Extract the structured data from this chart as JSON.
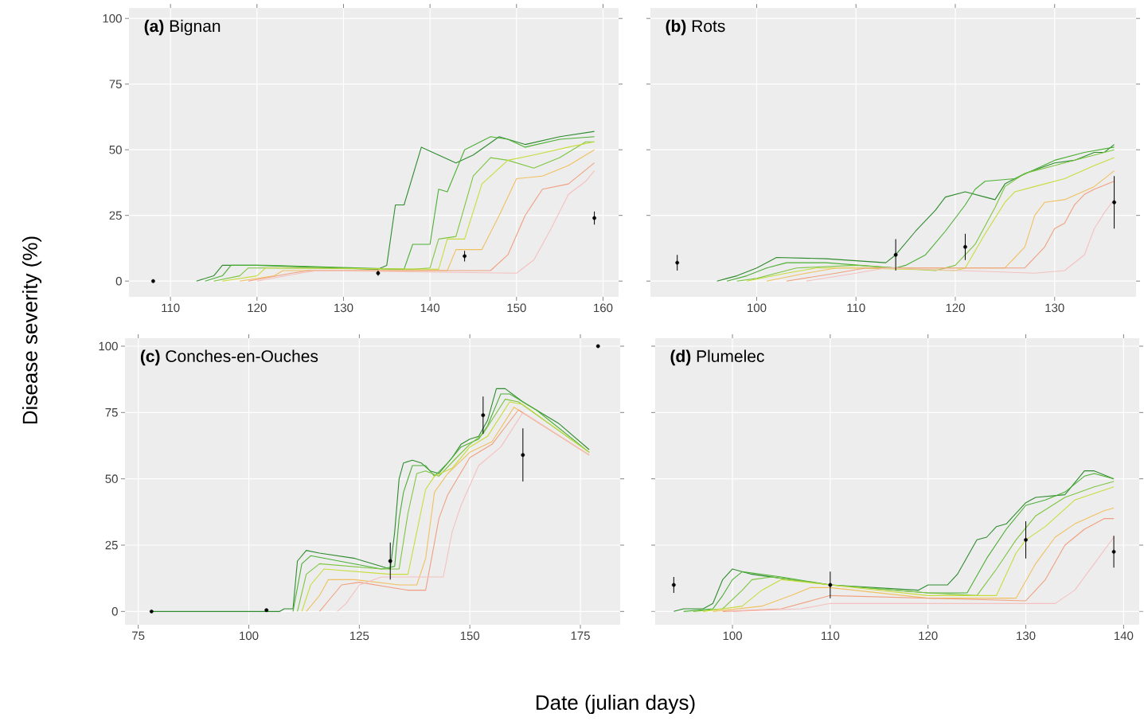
{
  "chart_data": [
    {
      "type": "line",
      "title": "**(a)** Bignan",
      "ylabel": "Disease severity (%)",
      "xlim": [
        105.2,
        161.8
      ],
      "ylim": [
        -6,
        104
      ],
      "xticks": [
        110,
        120,
        130,
        140,
        150,
        160
      ],
      "yticks": [
        0,
        25,
        50,
        75,
        100
      ],
      "grid": true,
      "series": [
        {
          "color": "#2e8b2e",
          "x": [
            113,
            115,
            116,
            120,
            134,
            135,
            136,
            137,
            139,
            143,
            145,
            148,
            151,
            155,
            159
          ],
          "values": [
            0,
            2,
            6,
            6,
            4.5,
            6,
            29,
            29,
            51,
            45,
            48,
            55,
            52,
            55,
            57
          ]
        },
        {
          "color": "#4caf35",
          "x": [
            114,
            116,
            117,
            121,
            137,
            138,
            140,
            141,
            142,
            144,
            147,
            149,
            151,
            155,
            159
          ],
          "values": [
            0,
            2,
            6,
            6,
            4.5,
            14,
            14,
            35,
            34,
            50,
            55,
            54,
            51,
            54,
            55
          ]
        },
        {
          "color": "#7dc540",
          "x": [
            115,
            118,
            119,
            122,
            138,
            140,
            141,
            143,
            145,
            147,
            149,
            152,
            155,
            158,
            159
          ],
          "values": [
            0,
            2,
            5,
            5,
            4.5,
            5,
            16,
            17,
            40,
            47,
            46,
            43,
            47,
            53,
            53
          ]
        },
        {
          "color": "#c8dc3c",
          "x": [
            116,
            120,
            121,
            124,
            141,
            142,
            144,
            146,
            149,
            152,
            156,
            159
          ],
          "values": [
            0,
            2,
            5,
            5,
            4.5,
            16,
            16,
            37,
            46,
            48,
            51,
            53
          ]
        },
        {
          "color": "#f0c060",
          "x": [
            118,
            122,
            123,
            125,
            142,
            143,
            146,
            148,
            150,
            153,
            156,
            159
          ],
          "values": [
            0,
            2,
            4,
            4,
            4,
            12,
            12,
            25,
            39,
            40,
            44,
            50
          ]
        },
        {
          "color": "#f0a080",
          "x": [
            119,
            124,
            126,
            147,
            149,
            151,
            153,
            156,
            159
          ],
          "values": [
            0,
            3,
            4,
            4,
            10,
            25,
            35,
            37,
            45
          ]
        },
        {
          "color": "#f5c0c0",
          "x": [
            120,
            125,
            127,
            150,
            152,
            154,
            156,
            158,
            159
          ],
          "values": [
            0,
            3,
            4,
            3,
            8,
            20,
            33,
            38,
            42
          ]
        },
        {
          "type": "scatter",
          "color": "#000000",
          "x": [
            108,
            134,
            144,
            159
          ],
          "values": [
            0,
            3,
            9.5,
            24
          ],
          "errors": [
            null,
            1,
            2,
            2.5
          ]
        }
      ]
    },
    {
      "type": "line",
      "title": "**(b)** Rots",
      "xlim": [
        89.3,
        138.2
      ],
      "ylim": [
        -6,
        104
      ],
      "xticks": [
        100,
        110,
        120,
        130
      ],
      "yticks": [
        0,
        25,
        50,
        75,
        100
      ],
      "grid": true,
      "tick_labels": "x",
      "series": [
        {
          "color": "#2e8b2e",
          "x": [
            96,
            97,
            98,
            100,
            102,
            107,
            113,
            114,
            116,
            118,
            119,
            121,
            123,
            124,
            125,
            127,
            130,
            132,
            134,
            135,
            136
          ],
          "values": [
            0,
            1,
            2,
            5,
            9,
            8.5,
            7,
            10,
            19,
            27,
            32,
            34,
            32,
            31,
            37,
            41,
            45,
            46,
            49,
            49,
            52
          ]
        },
        {
          "color": "#4caf35",
          "x": [
            97,
            99,
            101,
            103,
            107,
            114,
            115,
            117,
            119,
            121,
            122,
            123,
            126,
            130,
            133,
            136
          ],
          "values": [
            0,
            2,
            5,
            7,
            7,
            5,
            6,
            10,
            19,
            29,
            35,
            38,
            39,
            46,
            49,
            51
          ]
        },
        {
          "color": "#7dc540",
          "x": [
            98,
            100,
            102,
            104,
            110,
            118,
            120,
            122,
            124,
            125,
            127,
            130,
            133,
            136
          ],
          "values": [
            0,
            1,
            3,
            5,
            6,
            4,
            6,
            14,
            28,
            36,
            41,
            44,
            47,
            50
          ]
        },
        {
          "color": "#c8dc3c",
          "x": [
            99,
            103,
            106,
            110,
            120,
            121,
            123,
            125,
            126,
            128,
            131,
            134,
            136
          ],
          "values": [
            0,
            3,
            5,
            5,
            4,
            5,
            18,
            30,
            34,
            36,
            39,
            44,
            47
          ]
        },
        {
          "color": "#f0c060",
          "x": [
            101,
            105,
            108,
            120,
            125,
            127,
            128,
            129,
            131,
            134,
            136
          ],
          "values": [
            0,
            3,
            5,
            5,
            5,
            13,
            25,
            30,
            31,
            36,
            42
          ]
        },
        {
          "color": "#f0a080",
          "x": [
            103,
            108,
            111,
            127,
            129,
            130,
            131,
            132,
            133,
            134,
            136
          ],
          "values": [
            0,
            3,
            5,
            5,
            13,
            20,
            22,
            29,
            33,
            35,
            38
          ]
        },
        {
          "color": "#f5c0c0",
          "x": [
            105,
            110,
            113,
            128,
            131,
            133,
            134,
            135,
            136
          ],
          "values": [
            0,
            3,
            5,
            3,
            4,
            10,
            20,
            26,
            31
          ]
        },
        {
          "type": "scatter",
          "color": "#000000",
          "x": [
            92,
            114,
            121,
            136
          ],
          "values": [
            7,
            10,
            13,
            30
          ],
          "errors": [
            3,
            6,
            5,
            10
          ]
        }
      ]
    },
    {
      "type": "line",
      "title": "**(c)** Conches-en-Ouches",
      "xlabel": "Date (julian days)",
      "xlim": [
        72,
        184
      ],
      "ylim": [
        -5,
        103
      ],
      "xticks": [
        75,
        100,
        125,
        150,
        175
      ],
      "yticks": [
        0,
        25,
        50,
        75,
        100
      ],
      "grid": true,
      "series": [
        {
          "color": "#2e8b2e",
          "x": [
            78,
            107,
            108,
            110,
            111,
            113,
            116,
            124,
            130,
            132,
            133,
            134,
            135,
            137,
            139,
            141,
            143,
            146,
            148,
            150,
            152,
            154,
            156,
            158,
            162,
            170,
            177
          ],
          "values": [
            0,
            0,
            1,
            1,
            19,
            23,
            22,
            20,
            17,
            16,
            30,
            50,
            56,
            57,
            56,
            53,
            52,
            58,
            63,
            65,
            66,
            72,
            84,
            84,
            79,
            71,
            61
          ]
        },
        {
          "color": "#4caf35",
          "x": [
            110,
            112,
            114,
            130,
            133,
            134,
            135,
            137,
            140,
            142,
            145,
            148,
            152,
            154,
            157,
            159,
            165,
            177
          ],
          "values": [
            0,
            18,
            21,
            16,
            17,
            35,
            45,
            55,
            55,
            51,
            56,
            62,
            65,
            70,
            82,
            82,
            76,
            60
          ]
        },
        {
          "color": "#7dc540",
          "x": [
            111,
            113,
            116,
            130,
            134,
            136,
            138,
            140,
            143,
            147,
            150,
            153,
            158,
            161,
            177
          ],
          "values": [
            0,
            14,
            18,
            16,
            16,
            37,
            52,
            53,
            51,
            58,
            63,
            67,
            80,
            79,
            60
          ]
        },
        {
          "color": "#c8dc3c",
          "x": [
            112,
            114,
            117,
            132,
            136,
            138,
            140,
            142,
            146,
            150,
            154,
            159,
            162,
            177
          ],
          "values": [
            0,
            10,
            16,
            14,
            14,
            30,
            46,
            51,
            54,
            62,
            66,
            79,
            78,
            60
          ]
        },
        {
          "color": "#f0c060",
          "x": [
            113,
            116,
            118,
            124,
            134,
            138,
            140,
            142,
            145,
            150,
            155,
            160,
            177
          ],
          "values": [
            0,
            6,
            12,
            12,
            10,
            10,
            20,
            45,
            52,
            60,
            64,
            77,
            59
          ]
        },
        {
          "color": "#f0a080",
          "x": [
            116,
            118,
            121,
            125,
            136,
            140,
            143,
            145,
            150,
            155,
            161,
            177
          ],
          "values": [
            0,
            4,
            10,
            11,
            8,
            8,
            35,
            44,
            58,
            63,
            76,
            59
          ]
        },
        {
          "color": "#f5c0c0",
          "x": [
            120,
            122,
            125,
            130,
            138,
            144,
            146,
            148,
            152,
            157,
            162,
            177
          ],
          "values": [
            0,
            3,
            10,
            13,
            13,
            13,
            30,
            40,
            55,
            62,
            75,
            59
          ]
        },
        {
          "type": "scatter",
          "color": "#000000",
          "x": [
            78,
            104,
            132,
            153,
            162,
            179
          ],
          "values": [
            0,
            0.5,
            19,
            74,
            59,
            100
          ],
          "errors": [
            null,
            null,
            7,
            7,
            10,
            null
          ]
        }
      ]
    },
    {
      "type": "line",
      "title": "**(d)** Plumelec",
      "xlim": [
        92.1,
        141.6
      ],
      "ylim": [
        -5,
        103
      ],
      "xticks": [
        100,
        110,
        120,
        130,
        140
      ],
      "yticks": [
        0,
        25,
        50,
        75,
        100
      ],
      "grid": true,
      "tick_labels": "x",
      "series": [
        {
          "color": "#2e8b2e",
          "x": [
            94,
            95,
            97,
            98,
            99,
            100,
            102,
            110,
            119,
            120,
            122,
            123,
            125,
            126,
            127,
            128,
            130,
            131,
            134,
            136,
            137,
            139
          ],
          "values": [
            0,
            1,
            1,
            3,
            12,
            16,
            14,
            10,
            8,
            10,
            10,
            14,
            27,
            28,
            32,
            33,
            41,
            43,
            44,
            53,
            53,
            50
          ]
        },
        {
          "color": "#4caf35",
          "x": [
            95,
            98,
            99,
            100,
            101,
            105,
            110,
            120,
            124,
            126,
            128,
            130,
            132,
            134,
            136,
            137,
            139
          ],
          "values": [
            0,
            1,
            6,
            12,
            15,
            13,
            10,
            7,
            7,
            20,
            31,
            40,
            42,
            45,
            51,
            52,
            50
          ]
        },
        {
          "color": "#7dc540",
          "x": [
            96,
            99,
            101,
            102,
            104,
            110,
            120,
            125,
            127,
            129,
            131,
            134,
            137,
            139
          ],
          "values": [
            0,
            1,
            8,
            12,
            13,
            10,
            7,
            6,
            16,
            27,
            36,
            43,
            47,
            49
          ]
        },
        {
          "color": "#c8dc3c",
          "x": [
            97,
            101,
            103,
            105,
            110,
            120,
            127,
            129,
            130,
            132,
            135,
            139
          ],
          "values": [
            0,
            2,
            8,
            12,
            10,
            6,
            6,
            22,
            27,
            32,
            42,
            47
          ]
        },
        {
          "color": "#f0c060",
          "x": [
            98,
            103,
            106,
            108,
            110,
            120,
            129,
            131,
            133,
            135,
            138,
            139
          ],
          "values": [
            0,
            2,
            6,
            9,
            9,
            5,
            5,
            18,
            28,
            33,
            38,
            39
          ]
        },
        {
          "color": "#f0a080",
          "x": [
            99,
            105,
            108,
            110,
            120,
            130,
            132,
            134,
            136,
            138,
            139
          ],
          "values": [
            0,
            1,
            4,
            6,
            5,
            4,
            12,
            25,
            31,
            35,
            35
          ]
        },
        {
          "color": "#f5c0c0",
          "x": [
            100,
            107,
            110,
            120,
            130,
            133,
            135,
            137,
            139
          ],
          "values": [
            0,
            1,
            3,
            3,
            3,
            3,
            8,
            18,
            28
          ]
        },
        {
          "type": "scatter",
          "color": "#000000",
          "x": [
            94,
            110,
            130,
            139
          ],
          "values": [
            10,
            10,
            27,
            22.5
          ],
          "errors": [
            3,
            5,
            7,
            6
          ]
        }
      ]
    }
  ]
}
